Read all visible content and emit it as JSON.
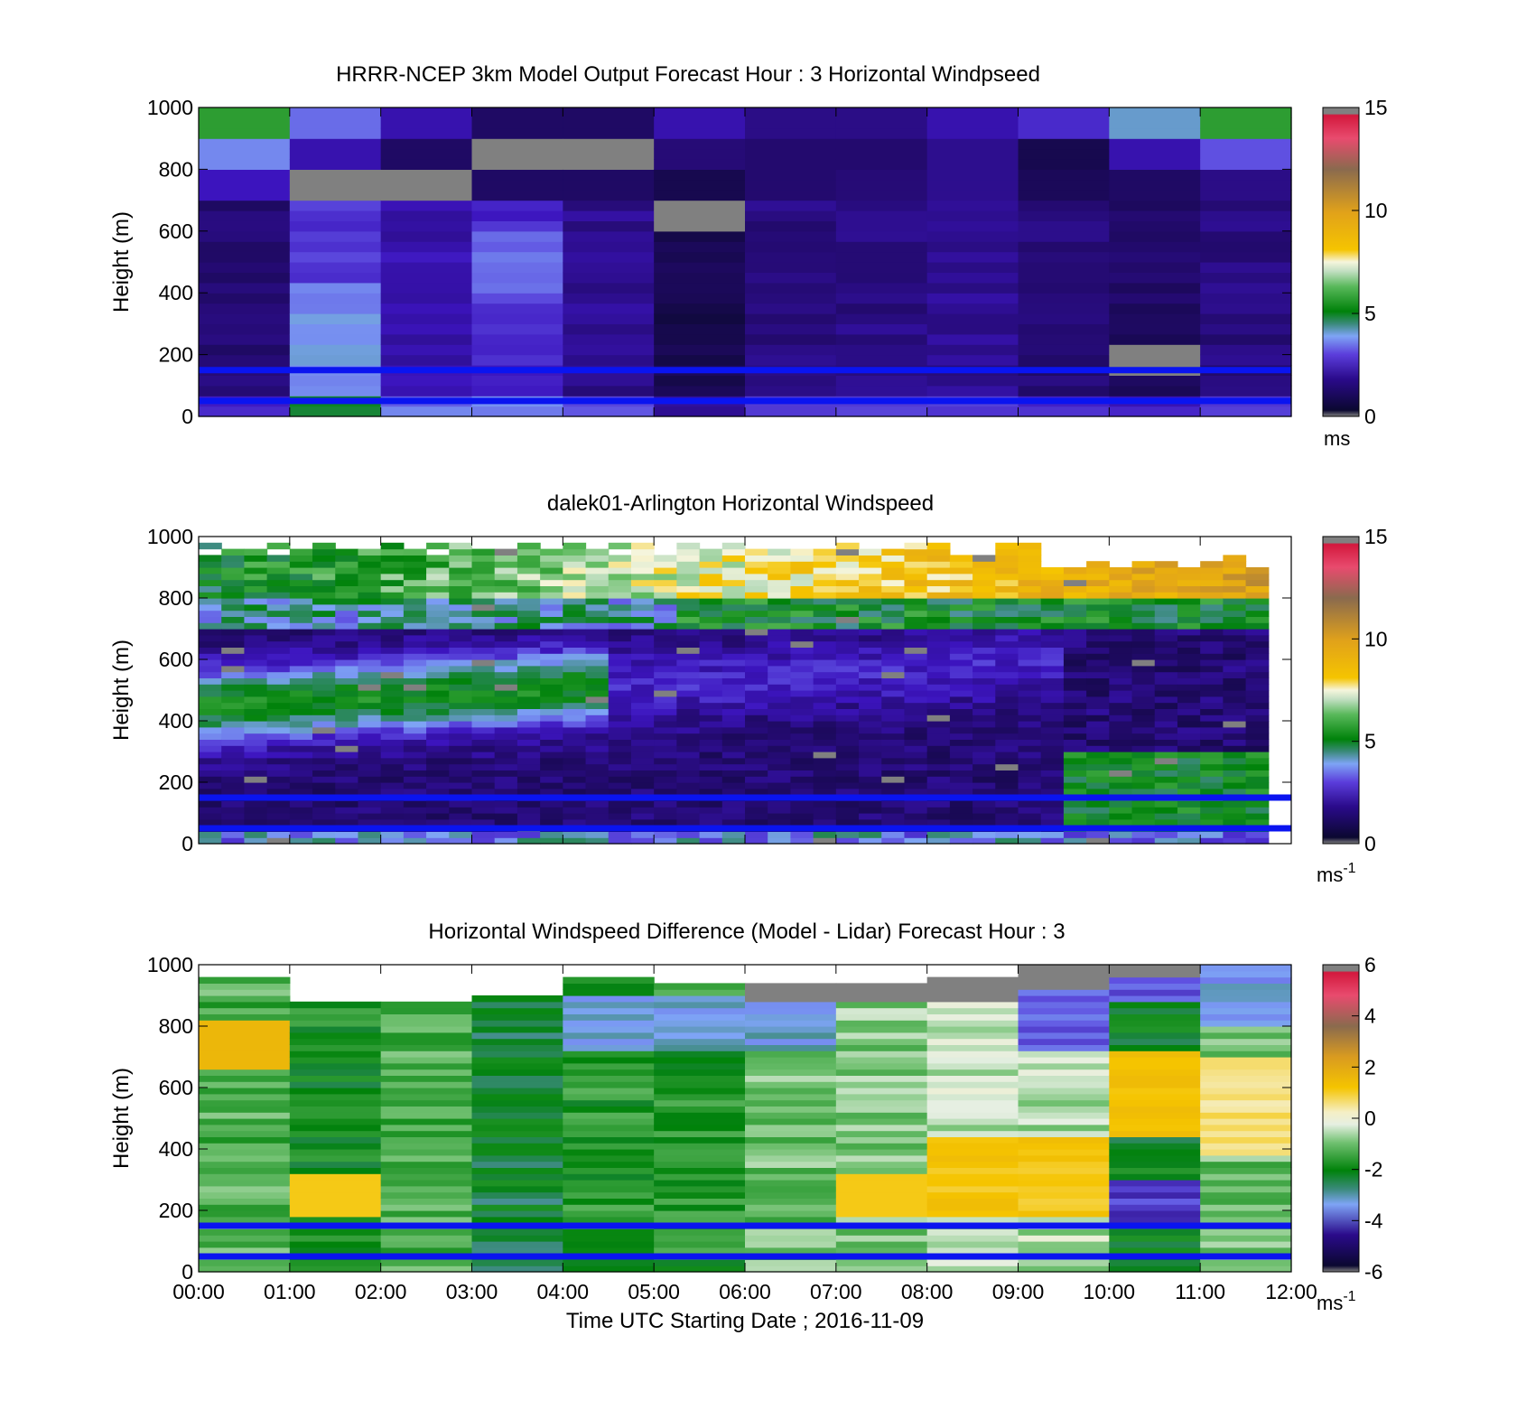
{
  "panels": [
    {
      "id": "model",
      "title": "HRRR-NCEP 3km Model Output   Forecast Hour : 3 Horizontal Windpseed",
      "ylabel": "Height (m)",
      "colorbar_unit": "ms",
      "colorbar_sup": ""
    },
    {
      "id": "lidar",
      "title": "dalek01-Arlington  Horizontal Windspeed",
      "ylabel": "Height (m)",
      "colorbar_unit": "ms",
      "colorbar_sup": "-1"
    },
    {
      "id": "diff",
      "title": "Horizontal Windspeed Difference (Model - Lidar) Forecast Hour : 3",
      "ylabel": "Height (m)",
      "colorbar_unit": "ms",
      "colorbar_sup": "-1"
    }
  ],
  "xlabel": "Time UTC  Starting Date ; 2016-11-09",
  "chart_data": [
    {
      "type": "heatmap",
      "title": "HRRR-NCEP 3km Model Output   Forecast Hour : 3 Horizontal Windpseed",
      "xlabel": "",
      "ylabel": "Height (m)",
      "x_ticks": [
        "00:00",
        "01:00",
        "02:00",
        "03:00",
        "04:00",
        "05:00",
        "06:00",
        "07:00",
        "08:00",
        "09:00",
        "10:00",
        "11:00",
        "12:00"
      ],
      "y_ticks": [
        0,
        200,
        400,
        600,
        800,
        1000
      ],
      "ylim": [
        0,
        1000
      ],
      "colorbar": {
        "ticks": [
          0,
          5,
          10,
          15
        ],
        "range": [
          0,
          15
        ],
        "unit": "ms"
      },
      "reference_lines_m": [
        50,
        150
      ],
      "columns_hour": [
        0,
        1,
        2,
        3,
        4,
        5,
        6,
        7,
        8,
        9,
        10,
        11
      ],
      "top_levels_windspeed": {
        "1000_900": [
          5.6,
          3.2,
          2.0,
          1.0,
          1.0,
          2.0,
          1.5,
          1.5,
          2.0,
          2.5,
          3.8,
          5.6
        ],
        "900_800": [
          3.4,
          2.0,
          1.0,
          null,
          null,
          1.3,
          1.2,
          1.2,
          1.6,
          0.6,
          2.0,
          3.0
        ],
        "800_700": [
          2.2,
          null,
          null,
          1.0,
          1.0,
          0.6,
          1.2,
          1.3,
          1.6,
          0.8,
          1.0,
          1.5
        ]
      }
    },
    {
      "type": "heatmap",
      "title": "dalek01-Arlington  Horizontal Windspeed",
      "xlabel": "",
      "ylabel": "Height (m)",
      "x_ticks": [
        "00:00",
        "01:00",
        "02:00",
        "03:00",
        "04:00",
        "05:00",
        "06:00",
        "07:00",
        "08:00",
        "09:00",
        "10:00",
        "11:00",
        "12:00"
      ],
      "y_ticks": [
        0,
        200,
        400,
        600,
        800,
        1000
      ],
      "ylim": [
        0,
        1000
      ],
      "colorbar": {
        "ticks": [
          0,
          5,
          10,
          15
        ],
        "range": [
          0,
          15
        ],
        "unit": "ms-1"
      },
      "reference_lines_m": [
        50,
        150
      ]
    },
    {
      "type": "heatmap",
      "title": "Horizontal Windspeed Difference (Model - Lidar) Forecast Hour : 3",
      "xlabel": "Time UTC  Starting Date ; 2016-11-09",
      "ylabel": "Height (m)",
      "x_ticks": [
        "00:00",
        "01:00",
        "02:00",
        "03:00",
        "04:00",
        "05:00",
        "06:00",
        "07:00",
        "08:00",
        "09:00",
        "10:00",
        "11:00",
        "12:00"
      ],
      "y_ticks": [
        0,
        200,
        400,
        600,
        800,
        1000
      ],
      "ylim": [
        0,
        1000
      ],
      "colorbar": {
        "ticks": [
          -6,
          -4,
          -2,
          0,
          2,
          4,
          6
        ],
        "range": [
          -6,
          6
        ],
        "unit": "ms-1"
      },
      "reference_lines_m": [
        50,
        150
      ]
    }
  ]
}
